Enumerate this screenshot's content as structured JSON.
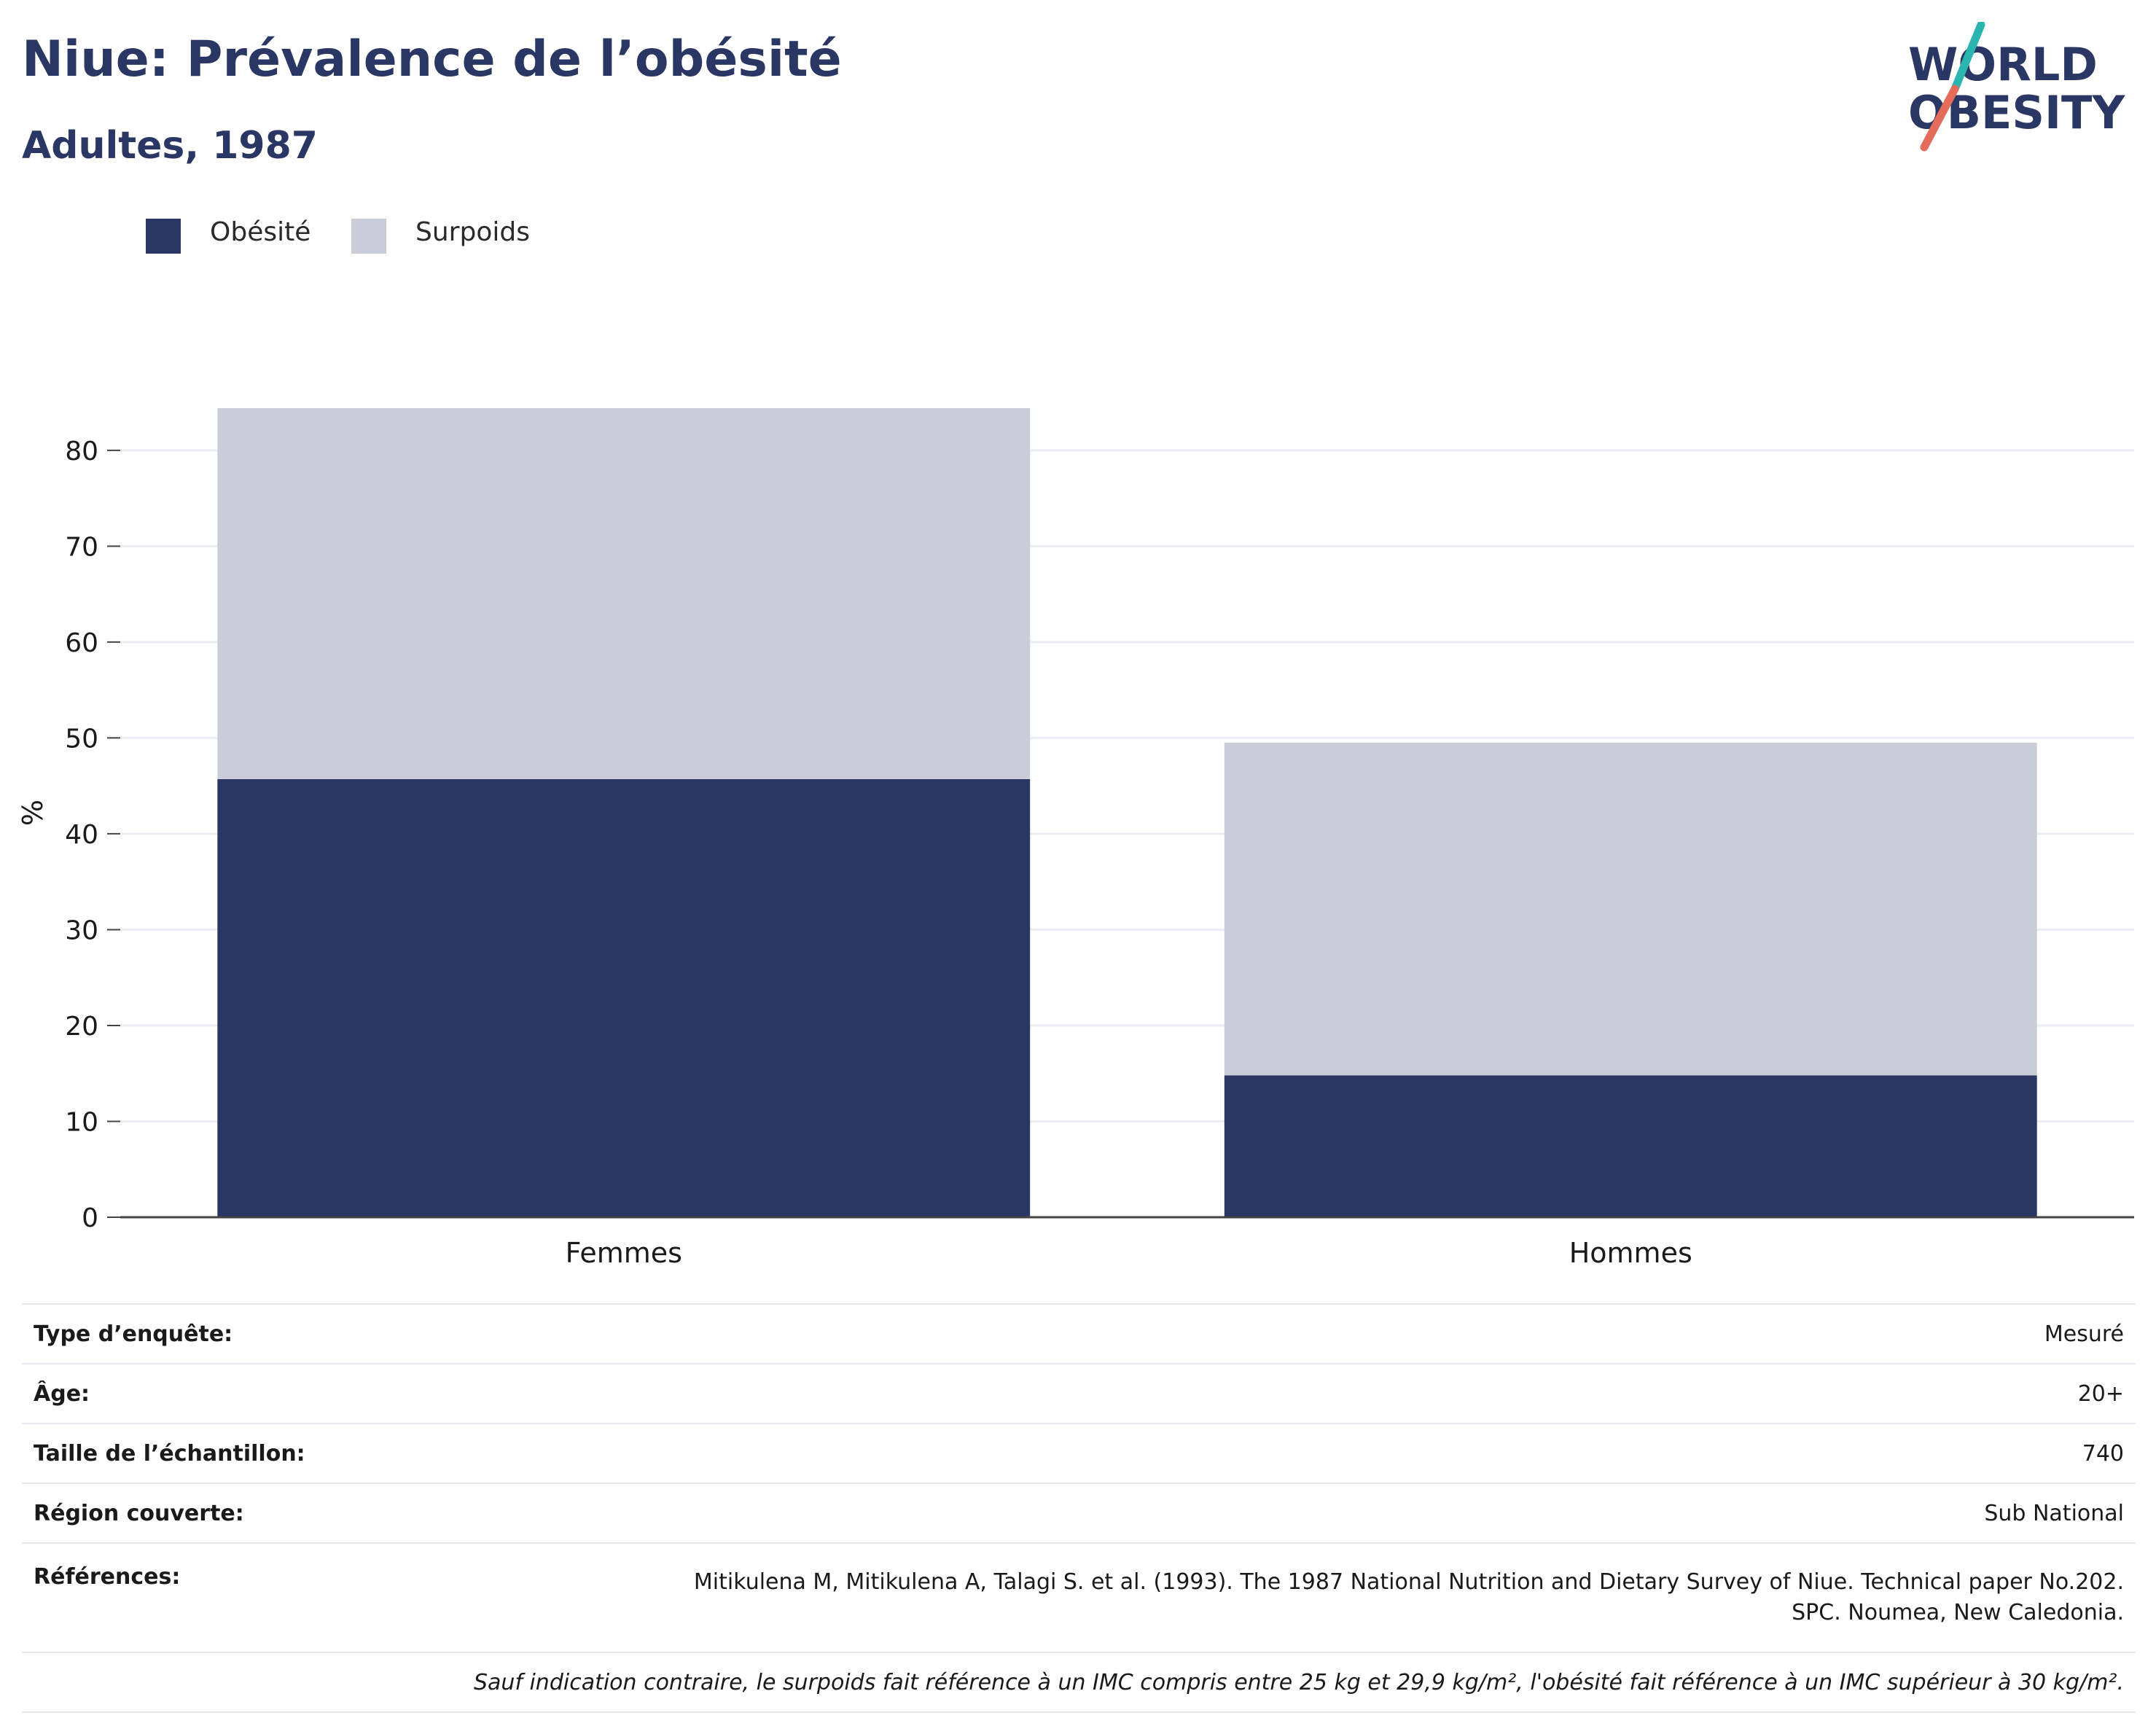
{
  "header": {
    "title": "Niue: Prévalence de l’obésité",
    "subtitle": "Adultes, 1987"
  },
  "logo": {
    "line1": "WORLD",
    "line2": "OBESITY",
    "slash_top_color": "#2bb5b0",
    "slash_bottom_color": "#e56b5a"
  },
  "colors": {
    "obesity": "#2a3664",
    "overweight": "#cacdd8",
    "grid": "#ebedf2",
    "axis": "#444444"
  },
  "legend": [
    {
      "label": "Obésité",
      "color": "#2a3664"
    },
    {
      "label": "Surpoids",
      "color": "#cacdd8"
    }
  ],
  "chart_data": {
    "type": "bar",
    "stacked": true,
    "categories": [
      "Femmes",
      "Hommes"
    ],
    "series": [
      {
        "name": "Obésité",
        "values": [
          45.7,
          14.8
        ]
      },
      {
        "name": "Surpoids",
        "values": [
          38.7,
          34.7
        ]
      }
    ],
    "ylabel": "%",
    "ylim": [
      0,
      84.4
    ],
    "yticks": [
      0,
      10,
      20,
      30,
      40,
      50,
      60,
      70,
      80
    ],
    "grid": true,
    "legend_position": "top-left"
  },
  "info": {
    "rows": [
      {
        "key": "Type d’enquête:",
        "value": "Mesuré"
      },
      {
        "key": "Âge:",
        "value": "20+"
      },
      {
        "key": "Taille de l’échantillon:",
        "value": "740"
      },
      {
        "key": "Région couverte:",
        "value": "Sub National"
      }
    ],
    "references_key": "Références:",
    "references_line1": "Mitikulena M, Mitikulena A, Talagi S. et al. (1993). The 1987 National Nutrition and Dietary Survey of Niue. Technical paper No.202.",
    "references_line2": "SPC. Noumea, New Caledonia.",
    "note": "Sauf indication contraire, le surpoids fait référence à un IMC compris entre 25 kg et 29,9 kg/m², l'obésité fait référence à un IMC supérieur à 30 kg/m²."
  }
}
